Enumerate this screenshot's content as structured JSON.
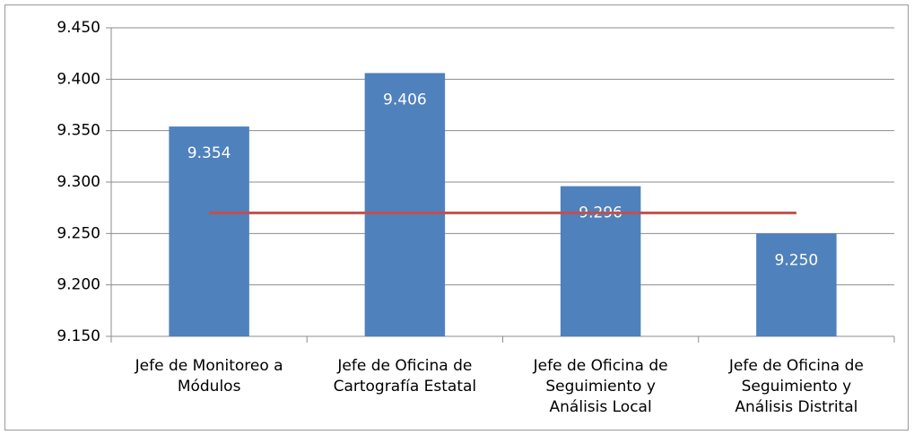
{
  "chart_data": {
    "type": "bar",
    "categories": [
      "Jefe de Monitoreo a Módulos",
      "Jefe de Oficina de Cartografía Estatal",
      "Jefe de Oficina de Seguimiento y Análisis Local",
      "Jefe de Oficina de Seguimiento y Análisis Distrital"
    ],
    "values": [
      9.354,
      9.406,
      9.296,
      9.25
    ],
    "value_labels": [
      "9.354",
      "9.406",
      "9.296",
      "9.250"
    ],
    "color": "#4f81bd",
    "reference_line": {
      "value": 9.27,
      "color": "#c0504d"
    },
    "ylim": [
      9.15,
      9.45
    ],
    "yticks": [
      {
        "value": 9.15,
        "label": "9.150"
      },
      {
        "value": 9.2,
        "label": "9.200"
      },
      {
        "value": 9.25,
        "label": "9.250"
      },
      {
        "value": 9.3,
        "label": "9.300"
      },
      {
        "value": 9.35,
        "label": "9.350"
      },
      {
        "value": 9.4,
        "label": "9.400"
      },
      {
        "value": 9.45,
        "label": "9.450"
      }
    ],
    "grid": true
  }
}
